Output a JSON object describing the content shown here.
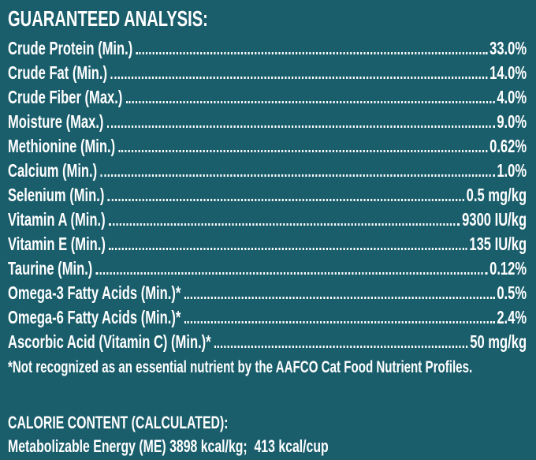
{
  "title": "GUARANTEED ANALYSIS:",
  "rows": [
    {
      "label": "Crude Protein (Min.)",
      "value": "33.0%"
    },
    {
      "label": "Crude Fat (Min.)",
      "value": "14.0%"
    },
    {
      "label": "Crude Fiber (Max.)",
      "value": "4.0%"
    },
    {
      "label": "Moisture (Max.)",
      "value": "9.0%"
    },
    {
      "label": "Methionine (Min.)",
      "value": "0.62%"
    },
    {
      "label": "Calcium (Min.)",
      "value": "1.0%"
    },
    {
      "label": "Selenium (Min.)",
      "value": "0.5 mg/kg"
    },
    {
      "label": "Vitamin A (Min.)",
      "value": "9300 IU/kg"
    },
    {
      "label": "Vitamin E (Min.)",
      "value": "135 IU/kg"
    },
    {
      "label": "Taurine (Min.)",
      "value": "0.12%"
    },
    {
      "label": "Omega-3 Fatty Acids (Min.)*",
      "value": "0.5%"
    },
    {
      "label": "Omega-6 Fatty Acids (Min.)*",
      "value": "2.4%"
    },
    {
      "label": "Ascorbic Acid (Vitamin C) (Min.)*",
      "value": "50 mg/kg"
    }
  ],
  "footnote": "*Not recognized as an essential nutrient by the AAFCO Cat Food Nutrient Profiles.",
  "calorie": {
    "heading": "CALORIE CONTENT (CALCULATED):",
    "text": "Metabolizable Energy (ME) 3898 kcal/kg;  413 kcal/cup"
  }
}
